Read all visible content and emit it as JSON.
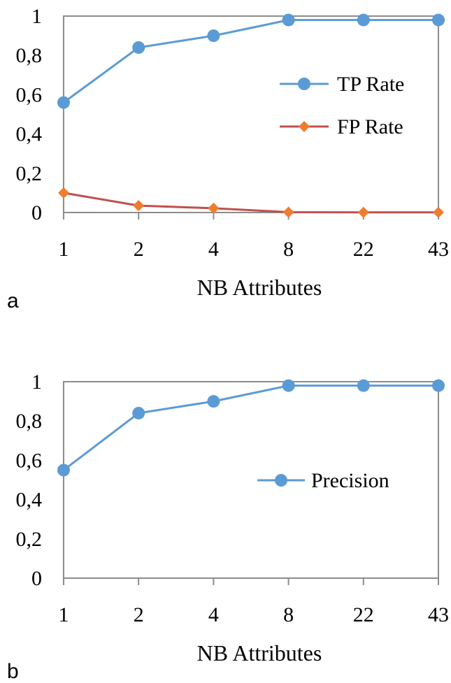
{
  "chart_data": [
    {
      "type": "line",
      "panel_label": "a",
      "categories": [
        "1",
        "2",
        "4",
        "8",
        "22",
        "43"
      ],
      "series": [
        {
          "name": "TP Rate",
          "values": [
            0.56,
            0.84,
            0.9,
            0.98,
            0.98,
            0.98
          ],
          "color": "#5B9BD5",
          "marker": "circle"
        },
        {
          "name": "FP Rate",
          "values": [
            0.1,
            0.035,
            0.022,
            0.002,
            0.001,
            0.001
          ],
          "color": "#ED7D31",
          "line_color": "#C0504D",
          "marker": "diamond"
        }
      ],
      "xlabel": "NB Attributes",
      "ylabel": "",
      "ylim": [
        0,
        1
      ],
      "yticks": [
        "0",
        "0,2",
        "0,4",
        "0,6",
        "0,8",
        "1"
      ],
      "legend_position": "right",
      "grid": false
    },
    {
      "type": "line",
      "panel_label": "b",
      "categories": [
        "1",
        "2",
        "4",
        "8",
        "22",
        "43"
      ],
      "series": [
        {
          "name": "Precision",
          "values": [
            0.55,
            0.84,
            0.9,
            0.98,
            0.98,
            0.98
          ],
          "color": "#5B9BD5",
          "marker": "circle"
        }
      ],
      "xlabel": "NB Attributes",
      "ylabel": "",
      "ylim": [
        0,
        1
      ],
      "yticks": [
        "0",
        "0,2",
        "0,4",
        "0,6",
        "0,8",
        "1"
      ],
      "legend_position": "right",
      "grid": false
    }
  ]
}
